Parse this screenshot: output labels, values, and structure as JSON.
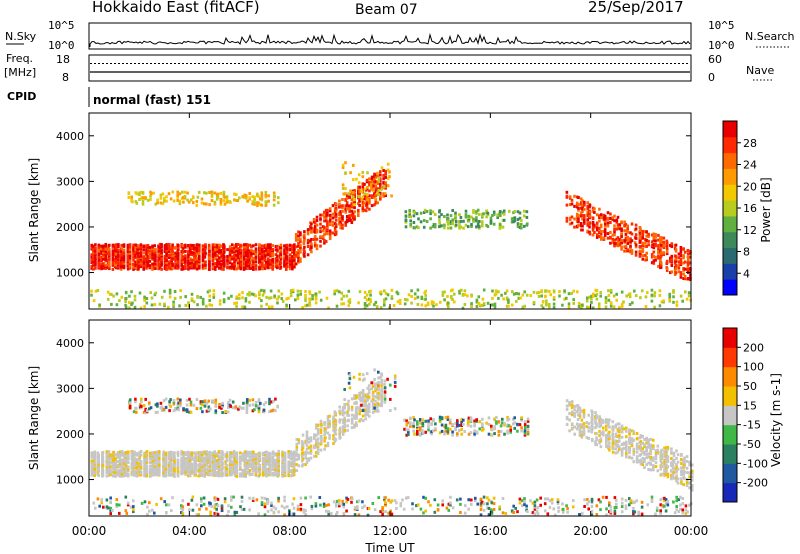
{
  "header": {
    "radar": "Hokkaido East (fitACF)",
    "beam": "Beam 07",
    "date": "25/Sep/2017"
  },
  "side_labels": {
    "nsky": "N.Sky",
    "freq_line1": "Freq.",
    "freq_line2": "[MHz]",
    "cpid": "CPID",
    "nsearch": "N.Search",
    "nave": "Nave"
  },
  "cpid_text": "normal (fast) 151",
  "noise_panel": {
    "ytick_top": "10^5",
    "ytick_bottom": "10^0",
    "right_ytick_top": "10^5",
    "right_ytick_bottom": "10^0"
  },
  "freq_panel": {
    "left_ticks": [
      "18",
      "8"
    ],
    "right_ticks": [
      "60",
      "0"
    ]
  },
  "chart_data": [
    {
      "type": "heatmap",
      "title": "",
      "ylabel": "Slant Range [km]",
      "xlabel": "",
      "ylim": [
        200,
        4500
      ],
      "yticks": [
        "1000",
        "2000",
        "3000",
        "4000"
      ],
      "colorbar_label": "Power [dB]",
      "colorbar_ticks": [
        "4",
        "8",
        "12",
        "16",
        "20",
        "24",
        "28"
      ],
      "colors": [
        "#0000ff",
        "#1a3fa8",
        "#2a6a70",
        "#3c8a5a",
        "#60b040",
        "#b8cc20",
        "#f2c800",
        "#ff9a00",
        "#ff6a00",
        "#ff2a00",
        "#e80000"
      ]
    },
    {
      "type": "heatmap",
      "title": "",
      "ylabel": "Slant Range [km]",
      "xlabel": "Time UT",
      "ylim": [
        200,
        4500
      ],
      "yticks": [
        "1000",
        "2000",
        "3000",
        "4000"
      ],
      "xticks": [
        "00:00",
        "04:00",
        "08:00",
        "12:00",
        "16:00",
        "20:00",
        "00:00"
      ],
      "colorbar_label": "Velocity [m s-1]",
      "colorbar_ticks": [
        "200",
        "100",
        "50",
        "15",
        "-15",
        "-50",
        "-100",
        "-200"
      ],
      "colors": [
        "#1828b8",
        "#1f5aa0",
        "#2a8060",
        "#40b848",
        "#c6c6c6",
        "#f2c000",
        "#ff8a00",
        "#ff3a00",
        "#e80000"
      ]
    }
  ]
}
